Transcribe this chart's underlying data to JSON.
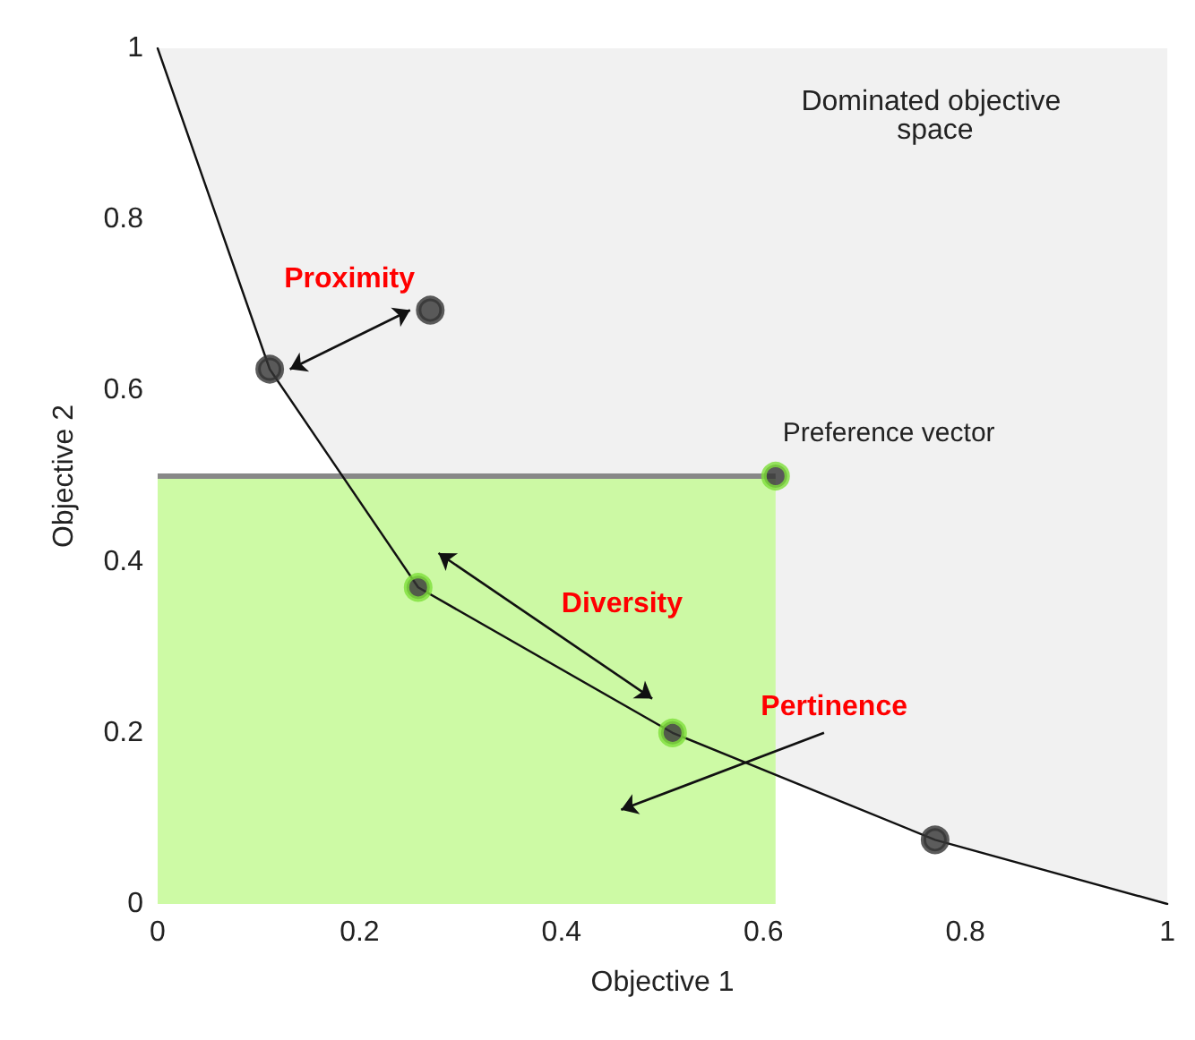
{
  "chart_data": {
    "type": "scatter",
    "xlabel": "Objective 1",
    "ylabel": "Objective 2",
    "xlim": [
      0,
      1
    ],
    "ylim": [
      0,
      1
    ],
    "xticks": [
      0,
      0.2,
      0.4,
      0.6,
      0.8,
      1
    ],
    "yticks": [
      0,
      0.2,
      0.4,
      0.6,
      0.8,
      1
    ],
    "grid": false,
    "series": [
      {
        "type": "area",
        "color": "#c8f99b",
        "x": [
          0,
          0.612
        ],
        "values": [
          0.5,
          0.5
        ]
      },
      {
        "type": "line",
        "color": "#111111",
        "x": [
          0,
          0.111,
          0.258,
          0.51,
          0.77,
          1
        ],
        "values": [
          1,
          0.625,
          0.37,
          0.2,
          0.075,
          0
        ],
        "lower": [
          1,
          0.625,
          0.37,
          0.2,
          0.075,
          0
        ],
        "upper": [
          1,
          1,
          1,
          1,
          1,
          1
        ],
        "marker": "none"
      },
      {
        "colors": [
          "#333333",
          "#7ee03a",
          "#7ee03a",
          "#333333",
          "#333333"
        ],
        "x": [
          0.111,
          0.258,
          0.51,
          0.77,
          0.27
        ],
        "values": [
          0.625,
          0.37,
          0.2,
          0.075,
          0.694
        ],
        "marker": "circle"
      },
      {
        "color": "#7ee03a",
        "x": [
          0.612
        ],
        "values": [
          0.5
        ],
        "marker": "circle"
      }
    ],
    "annotations": [
      "Dominated objective space",
      "Proximity",
      "Diversity",
      "Pertinence",
      {
        "text": "Preference vector",
        "x": 0.612,
        "y": 0.5
      }
    ]
  }
}
